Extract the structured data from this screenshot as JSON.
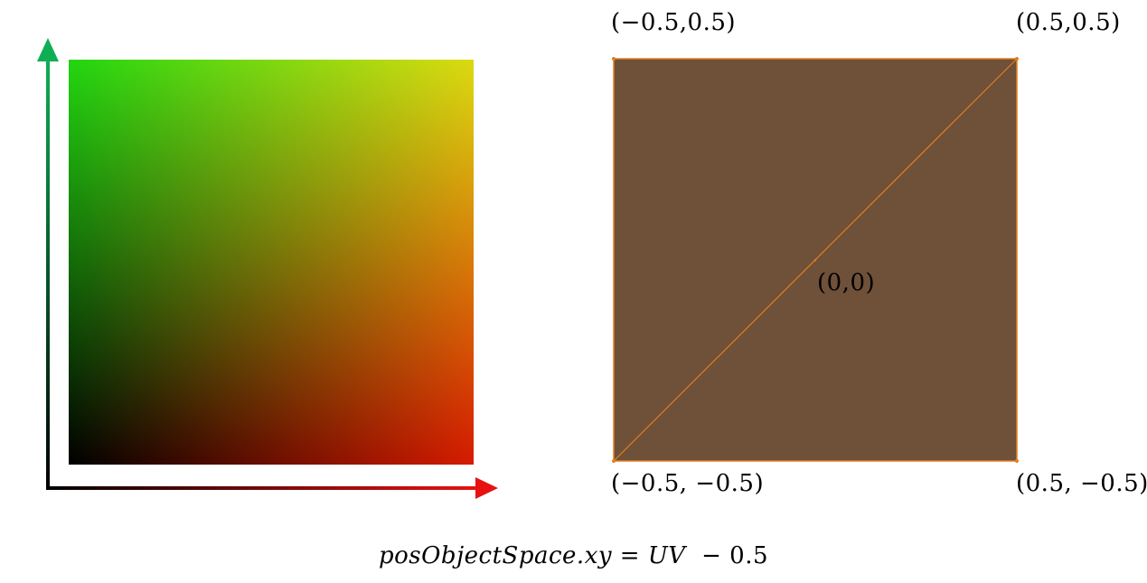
{
  "uv_diagram": {
    "colors": {
      "x_axis_start": "#000000",
      "x_axis_end": "#e81111",
      "y_axis_start": "#000000",
      "y_axis_end": "#0fae55",
      "corner_top_left": "#22d611",
      "corner_top_right": "#d4d400",
      "corner_bottom_left": "#000000",
      "corner_bottom_right": "#d61a00"
    }
  },
  "object_space_quad": {
    "fill_color": "#6f5039",
    "edge_color": "#e07f20",
    "labels": {
      "top_left": "(−0.5,0.5)",
      "top_right": "(0.5,0.5)",
      "center": "(0,0)",
      "bottom_left": "(−0.5, −0.5)",
      "bottom_right": "(0.5, −0.5)"
    }
  },
  "formula": {
    "lhs": "posObjectSpace.xy",
    "equals": " = ",
    "rhs_var": "UV",
    "rhs_rest": "  − 0.5"
  }
}
